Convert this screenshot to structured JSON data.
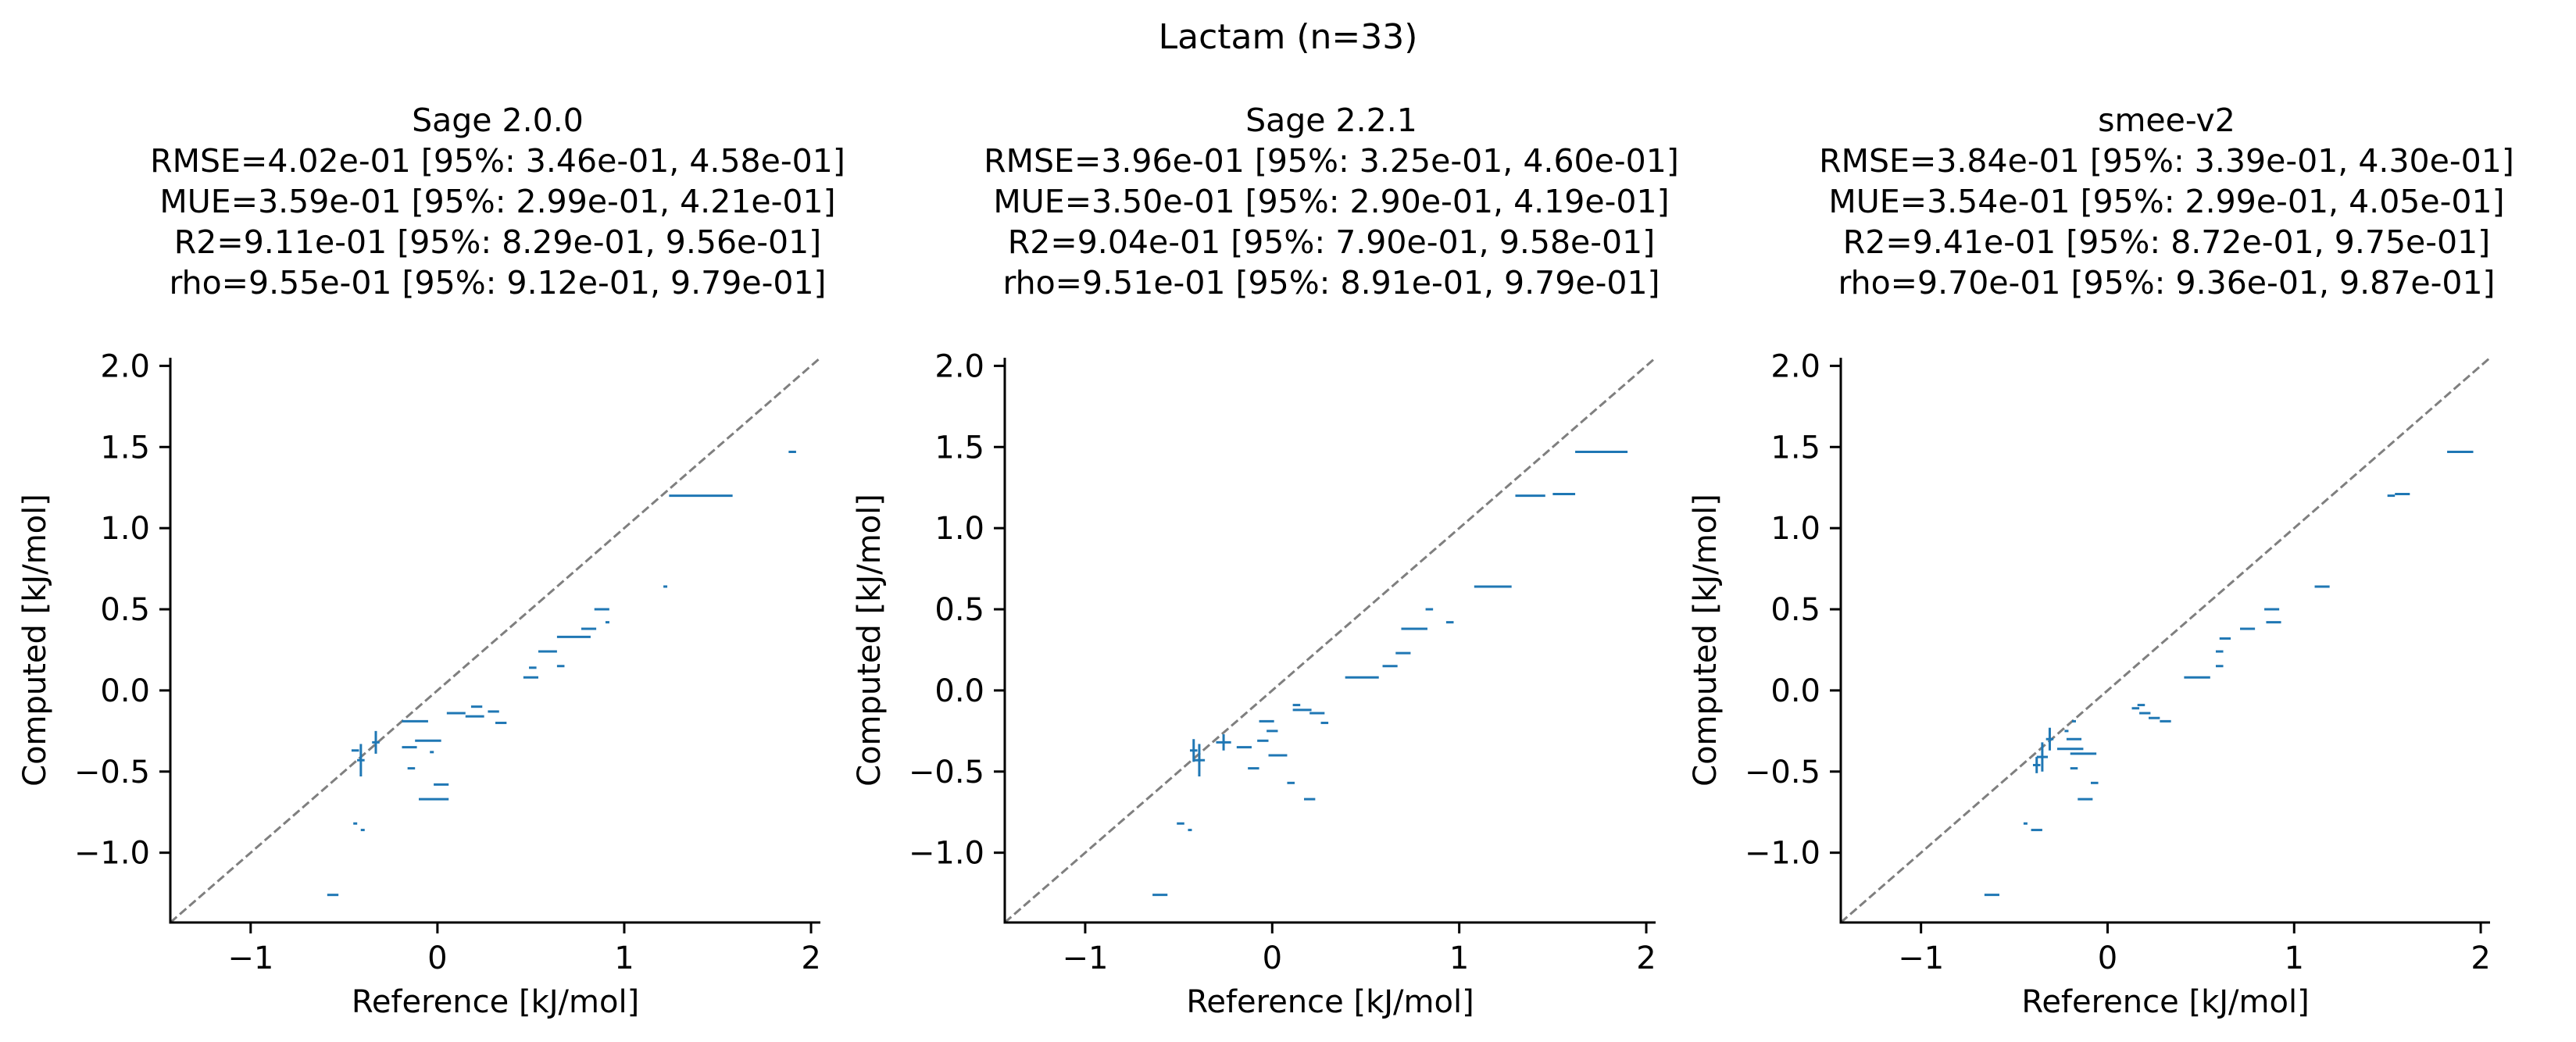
{
  "figure": {
    "suptitle": "Lactam (n=33)",
    "colors": {
      "series": "#1f77b4",
      "diagonal": "#7f7f7f",
      "axes": "#000000"
    }
  },
  "chart_data": [
    {
      "type": "scatter",
      "title": "Sage 2.0.0",
      "stats": [
        "RMSE=4.02e-01 [95%: 3.46e-01, 4.58e-01]",
        "MUE=3.59e-01 [95%: 2.99e-01, 4.21e-01]",
        "R2=9.11e-01 [95%: 8.29e-01, 9.56e-01]",
        "rho=9.55e-01 [95%: 9.12e-01, 9.79e-01]"
      ],
      "xlabel": "Reference [kJ/mol]",
      "ylabel": "Computed [kJ/mol]",
      "xlim": [
        -1.43,
        2.05
      ],
      "ylim": [
        -1.43,
        2.05
      ],
      "xticks": [
        -1,
        0,
        1,
        2
      ],
      "yticks": [
        -1.0,
        -0.5,
        0.0,
        0.5,
        1.0,
        1.5,
        2.0
      ],
      "grid": false,
      "diagonal": true,
      "points": [
        {
          "x": 1.9,
          "y": 1.47,
          "xerr": 0.02,
          "yerr": 0
        },
        {
          "x": 1.41,
          "y": 1.2,
          "xerr": 0.17,
          "yerr": 0
        },
        {
          "x": 1.22,
          "y": 0.64,
          "xerr": 0,
          "yerr": 0
        },
        {
          "x": 0.88,
          "y": 0.5,
          "xerr": 0.04,
          "yerr": 0
        },
        {
          "x": 0.91,
          "y": 0.42,
          "xerr": 0.01,
          "yerr": 0
        },
        {
          "x": 0.81,
          "y": 0.38,
          "xerr": 0.04,
          "yerr": 0
        },
        {
          "x": 0.73,
          "y": 0.33,
          "xerr": 0.09,
          "yerr": 0
        },
        {
          "x": 0.59,
          "y": 0.24,
          "xerr": 0.05,
          "yerr": 0
        },
        {
          "x": 0.66,
          "y": 0.15,
          "xerr": 0.02,
          "yerr": 0
        },
        {
          "x": 0.51,
          "y": 0.14,
          "xerr": 0.02,
          "yerr": 0
        },
        {
          "x": 0.5,
          "y": 0.08,
          "xerr": 0.04,
          "yerr": 0
        },
        {
          "x": 0.21,
          "y": -0.1,
          "xerr": 0.03,
          "yerr": 0
        },
        {
          "x": 0.1,
          "y": -0.14,
          "xerr": 0.05,
          "yerr": 0
        },
        {
          "x": 0.2,
          "y": -0.16,
          "xerr": 0.05,
          "yerr": 0
        },
        {
          "x": 0.3,
          "y": -0.13,
          "xerr": 0.03,
          "yerr": 0
        },
        {
          "x": 0.34,
          "y": -0.2,
          "xerr": 0.03,
          "yerr": 0
        },
        {
          "x": -0.12,
          "y": -0.19,
          "xerr": 0.07,
          "yerr": 0
        },
        {
          "x": -0.05,
          "y": -0.31,
          "xerr": 0.07,
          "yerr": 0
        },
        {
          "x": -0.15,
          "y": -0.35,
          "xerr": 0.04,
          "yerr": 0
        },
        {
          "x": -0.03,
          "y": -0.38,
          "xerr": 0.01,
          "yerr": 0
        },
        {
          "x": -0.14,
          "y": -0.48,
          "xerr": 0.02,
          "yerr": 0
        },
        {
          "x": 0.02,
          "y": -0.58,
          "xerr": 0.04,
          "yerr": 0
        },
        {
          "x": -0.02,
          "y": -0.67,
          "xerr": 0.08,
          "yerr": 0
        },
        {
          "x": -0.41,
          "y": -0.43,
          "xerr": 0.02,
          "yerr": 0.1
        },
        {
          "x": -0.33,
          "y": -0.32,
          "xerr": 0.02,
          "yerr": 0.07
        },
        {
          "x": -0.44,
          "y": -0.37,
          "xerr": 0.02,
          "yerr": 0
        },
        {
          "x": -0.44,
          "y": -0.82,
          "xerr": 0.01,
          "yerr": 0
        },
        {
          "x": -0.4,
          "y": -0.86,
          "xerr": 0.01,
          "yerr": 0
        },
        {
          "x": -0.56,
          "y": -1.26,
          "xerr": 0.03,
          "yerr": 0
        }
      ]
    },
    {
      "type": "scatter",
      "title": "Sage 2.2.1",
      "stats": [
        "RMSE=3.96e-01 [95%: 3.25e-01, 4.60e-01]",
        "MUE=3.50e-01 [95%: 2.90e-01, 4.19e-01]",
        "R2=9.04e-01 [95%: 7.90e-01, 9.58e-01]",
        "rho=9.51e-01 [95%: 8.91e-01, 9.79e-01]"
      ],
      "xlabel": "Reference [kJ/mol]",
      "ylabel": "Computed [kJ/mol]",
      "xlim": [
        -1.43,
        2.05
      ],
      "ylim": [
        -1.43,
        2.05
      ],
      "xticks": [
        -1,
        0,
        1,
        2
      ],
      "yticks": [
        -1.0,
        -0.5,
        0.0,
        0.5,
        1.0,
        1.5,
        2.0
      ],
      "grid": false,
      "diagonal": true,
      "points": [
        {
          "x": 1.76,
          "y": 1.47,
          "xerr": 0.14,
          "yerr": 0
        },
        {
          "x": 1.38,
          "y": 1.2,
          "xerr": 0.08,
          "yerr": 0
        },
        {
          "x": 1.56,
          "y": 1.21,
          "xerr": 0.06,
          "yerr": 0
        },
        {
          "x": 1.18,
          "y": 0.64,
          "xerr": 0.1,
          "yerr": 0
        },
        {
          "x": 0.84,
          "y": 0.5,
          "xerr": 0.02,
          "yerr": 0
        },
        {
          "x": 0.95,
          "y": 0.42,
          "xerr": 0.02,
          "yerr": 0
        },
        {
          "x": 0.76,
          "y": 0.38,
          "xerr": 0.07,
          "yerr": 0
        },
        {
          "x": 0.7,
          "y": 0.23,
          "xerr": 0.04,
          "yerr": 0
        },
        {
          "x": 0.63,
          "y": 0.15,
          "xerr": 0.04,
          "yerr": 0
        },
        {
          "x": 0.48,
          "y": 0.08,
          "xerr": 0.09,
          "yerr": 0
        },
        {
          "x": 0.13,
          "y": -0.09,
          "xerr": 0.02,
          "yerr": 0
        },
        {
          "x": 0.16,
          "y": -0.12,
          "xerr": 0.05,
          "yerr": 0
        },
        {
          "x": 0.24,
          "y": -0.14,
          "xerr": 0.04,
          "yerr": 0
        },
        {
          "x": 0.28,
          "y": -0.2,
          "xerr": 0.02,
          "yerr": 0
        },
        {
          "x": -0.03,
          "y": -0.19,
          "xerr": 0.04,
          "yerr": 0
        },
        {
          "x": 0.0,
          "y": -0.25,
          "xerr": 0.03,
          "yerr": 0
        },
        {
          "x": -0.05,
          "y": -0.31,
          "xerr": 0.03,
          "yerr": 0
        },
        {
          "x": 0.03,
          "y": -0.4,
          "xerr": 0.05,
          "yerr": 0
        },
        {
          "x": -0.15,
          "y": -0.35,
          "xerr": 0.04,
          "yerr": 0
        },
        {
          "x": -0.1,
          "y": -0.48,
          "xerr": 0.03,
          "yerr": 0
        },
        {
          "x": 0.1,
          "y": -0.57,
          "xerr": 0.02,
          "yerr": 0
        },
        {
          "x": 0.2,
          "y": -0.67,
          "xerr": 0.03,
          "yerr": 0
        },
        {
          "x": -0.39,
          "y": -0.43,
          "xerr": 0.03,
          "yerr": 0.1
        },
        {
          "x": -0.26,
          "y": -0.32,
          "xerr": 0.04,
          "yerr": 0.05
        },
        {
          "x": -0.42,
          "y": -0.37,
          "xerr": 0.02,
          "yerr": 0.07
        },
        {
          "x": -0.49,
          "y": -0.82,
          "xerr": 0.02,
          "yerr": 0
        },
        {
          "x": -0.44,
          "y": -0.86,
          "xerr": 0.01,
          "yerr": 0
        },
        {
          "x": -0.6,
          "y": -1.26,
          "xerr": 0.04,
          "yerr": 0
        }
      ]
    },
    {
      "type": "scatter",
      "title": "smee-v2",
      "stats": [
        "RMSE=3.84e-01 [95%: 3.39e-01, 4.30e-01]",
        "MUE=3.54e-01 [95%: 2.99e-01, 4.05e-01]",
        "R2=9.41e-01 [95%: 8.72e-01, 9.75e-01]",
        "rho=9.70e-01 [95%: 9.36e-01, 9.87e-01]"
      ],
      "xlabel": "Reference [kJ/mol]",
      "ylabel": "Computed [kJ/mol]",
      "xlim": [
        -1.43,
        2.05
      ],
      "ylim": [
        -1.43,
        2.05
      ],
      "xticks": [
        -1,
        0,
        1,
        2
      ],
      "yticks": [
        -1.0,
        -0.5,
        0.0,
        0.5,
        1.0,
        1.5,
        2.0
      ],
      "grid": false,
      "diagonal": true,
      "points": [
        {
          "x": 1.89,
          "y": 1.47,
          "xerr": 0.07,
          "yerr": 0
        },
        {
          "x": 1.52,
          "y": 1.2,
          "xerr": 0.02,
          "yerr": 0
        },
        {
          "x": 1.58,
          "y": 1.21,
          "xerr": 0.04,
          "yerr": 0
        },
        {
          "x": 1.15,
          "y": 0.64,
          "xerr": 0.04,
          "yerr": 0
        },
        {
          "x": 0.88,
          "y": 0.5,
          "xerr": 0.04,
          "yerr": 0
        },
        {
          "x": 0.89,
          "y": 0.42,
          "xerr": 0.04,
          "yerr": 0
        },
        {
          "x": 0.75,
          "y": 0.38,
          "xerr": 0.04,
          "yerr": 0
        },
        {
          "x": 0.63,
          "y": 0.32,
          "xerr": 0.03,
          "yerr": 0
        },
        {
          "x": 0.6,
          "y": 0.24,
          "xerr": 0.02,
          "yerr": 0
        },
        {
          "x": 0.6,
          "y": 0.15,
          "xerr": 0.02,
          "yerr": 0
        },
        {
          "x": 0.48,
          "y": 0.08,
          "xerr": 0.07,
          "yerr": 0
        },
        {
          "x": 0.18,
          "y": -0.09,
          "xerr": 0.02,
          "yerr": 0
        },
        {
          "x": 0.15,
          "y": -0.11,
          "xerr": 0.02,
          "yerr": 0
        },
        {
          "x": 0.2,
          "y": -0.14,
          "xerr": 0.03,
          "yerr": 0
        },
        {
          "x": 0.25,
          "y": -0.17,
          "xerr": 0.03,
          "yerr": 0
        },
        {
          "x": 0.31,
          "y": -0.19,
          "xerr": 0.03,
          "yerr": 0
        },
        {
          "x": -0.18,
          "y": -0.19,
          "xerr": 0.01,
          "yerr": 0
        },
        {
          "x": -0.22,
          "y": -0.25,
          "xerr": 0.01,
          "yerr": 0
        },
        {
          "x": -0.18,
          "y": -0.3,
          "xerr": 0.04,
          "yerr": 0
        },
        {
          "x": -0.2,
          "y": -0.36,
          "xerr": 0.07,
          "yerr": 0
        },
        {
          "x": -0.13,
          "y": -0.39,
          "xerr": 0.07,
          "yerr": 0
        },
        {
          "x": -0.18,
          "y": -0.48,
          "xerr": 0.02,
          "yerr": 0
        },
        {
          "x": -0.07,
          "y": -0.57,
          "xerr": 0.02,
          "yerr": 0
        },
        {
          "x": -0.12,
          "y": -0.67,
          "xerr": 0.04,
          "yerr": 0
        },
        {
          "x": -0.31,
          "y": -0.3,
          "xerr": 0.02,
          "yerr": 0.07
        },
        {
          "x": -0.35,
          "y": -0.41,
          "xerr": 0.03,
          "yerr": 0.09
        },
        {
          "x": -0.38,
          "y": -0.46,
          "xerr": 0.02,
          "yerr": 0.05
        },
        {
          "x": -0.44,
          "y": -0.82,
          "xerr": 0.01,
          "yerr": 0
        },
        {
          "x": -0.38,
          "y": -0.86,
          "xerr": 0.03,
          "yerr": 0
        },
        {
          "x": -0.62,
          "y": -1.26,
          "xerr": 0.04,
          "yerr": 0
        }
      ]
    }
  ]
}
